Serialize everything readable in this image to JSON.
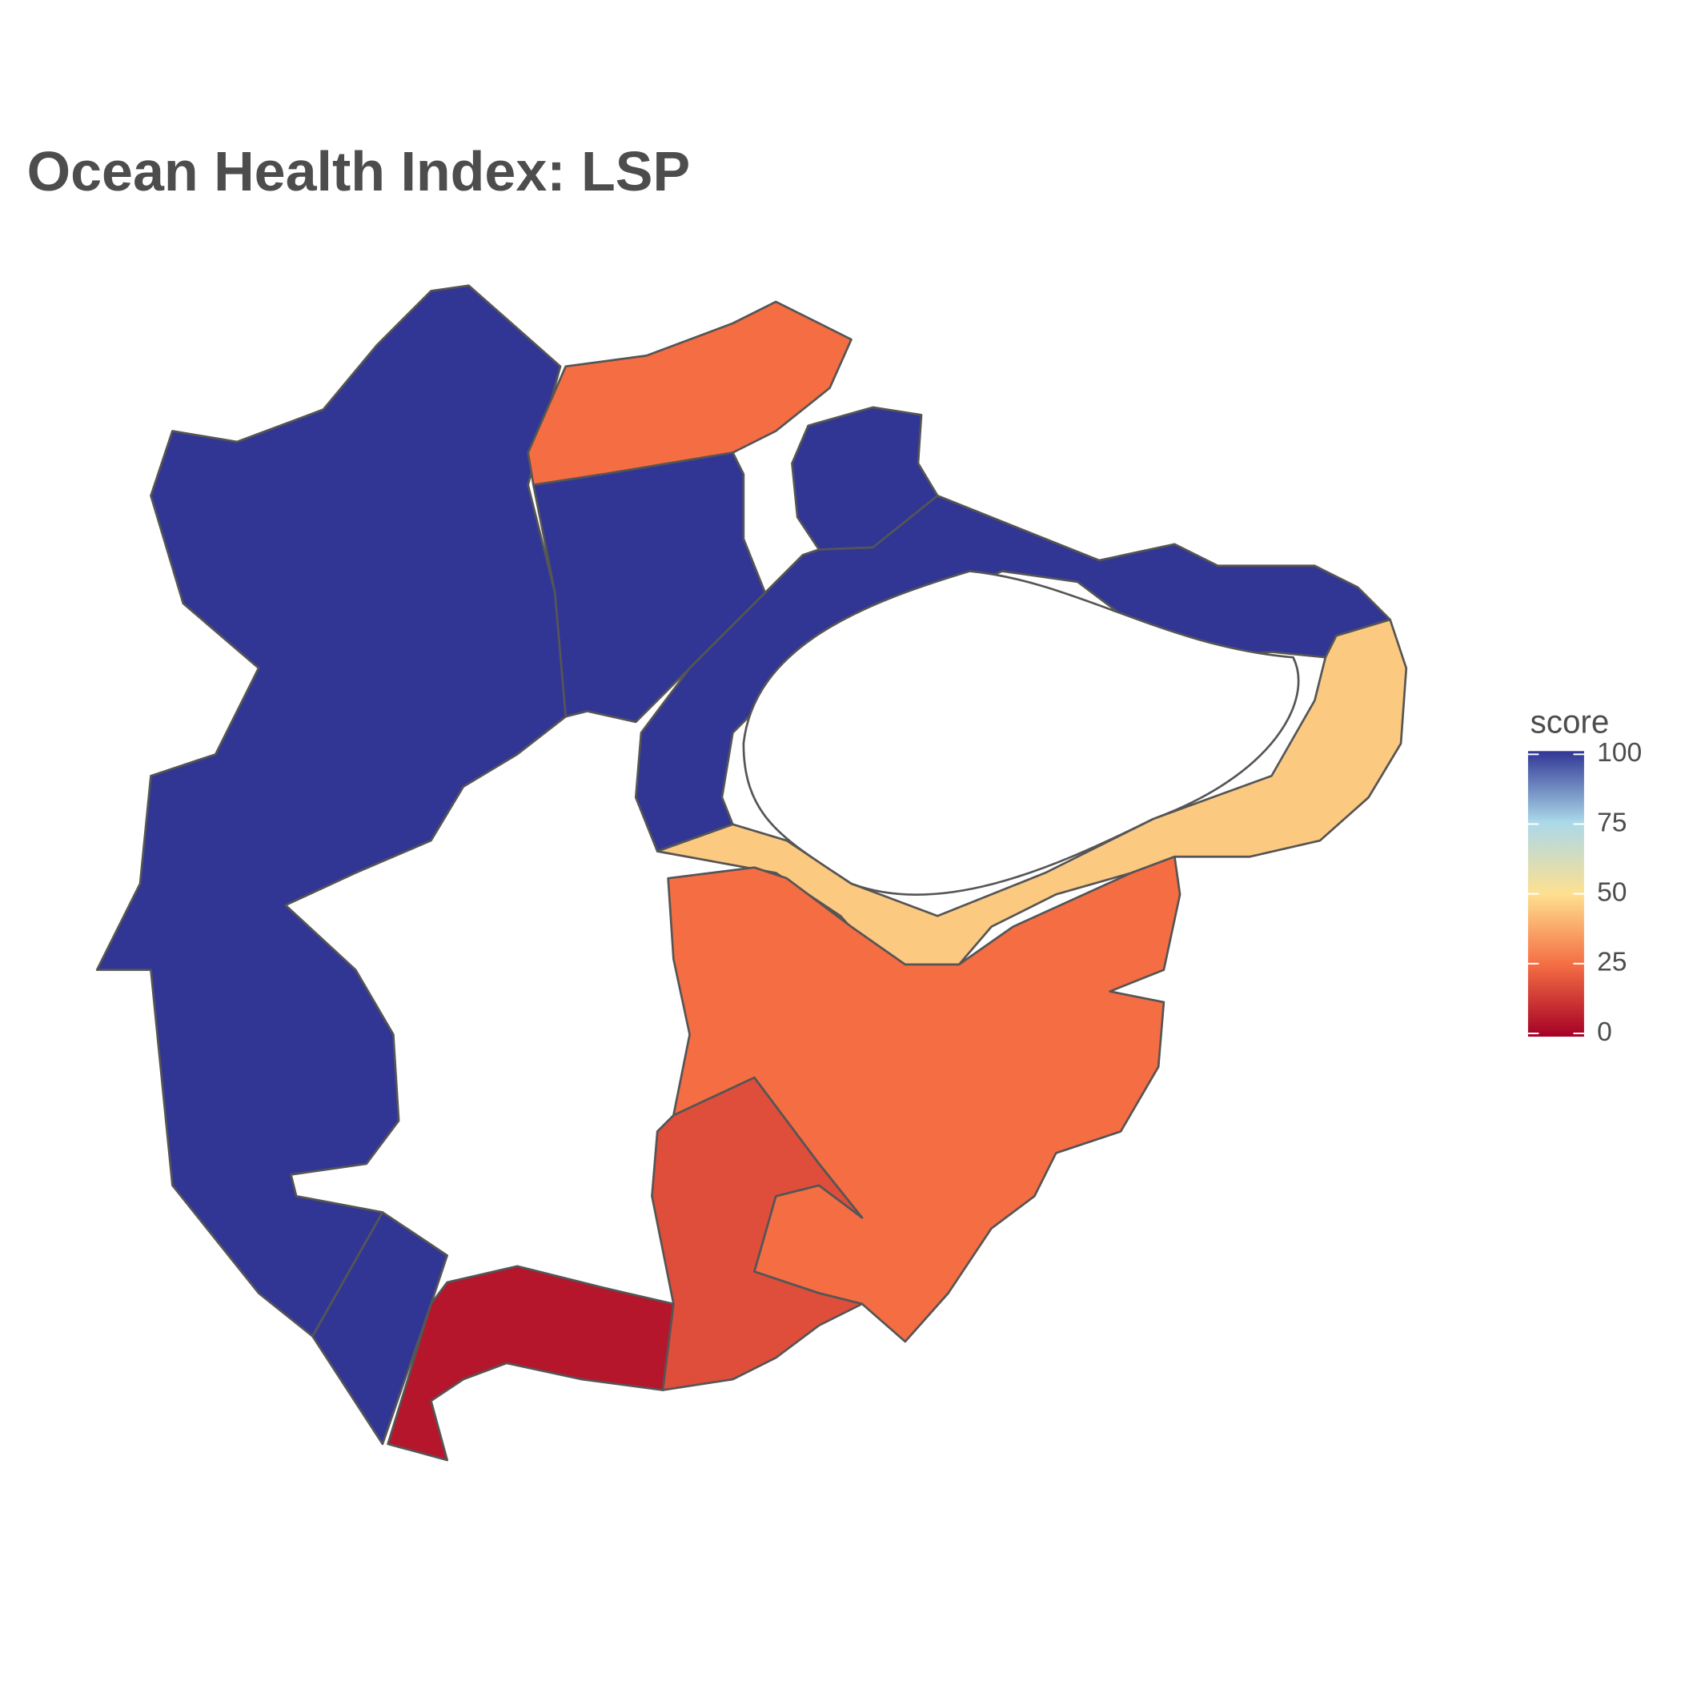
{
  "chart_data": {
    "type": "choropleth",
    "title": "Ocean Health Index: LSP",
    "legend_title": "score",
    "values": [
      100,
      25,
      100,
      100,
      100,
      45,
      25,
      18,
      5,
      100
    ],
    "color_lim": [
      0,
      100
    ],
    "color_ticks": [
      0,
      25,
      50,
      75,
      100
    ],
    "colors": [
      "#a50026",
      "#f46d43",
      "#fee090",
      "#abd9e9",
      "#313695"
    ]
  }
}
